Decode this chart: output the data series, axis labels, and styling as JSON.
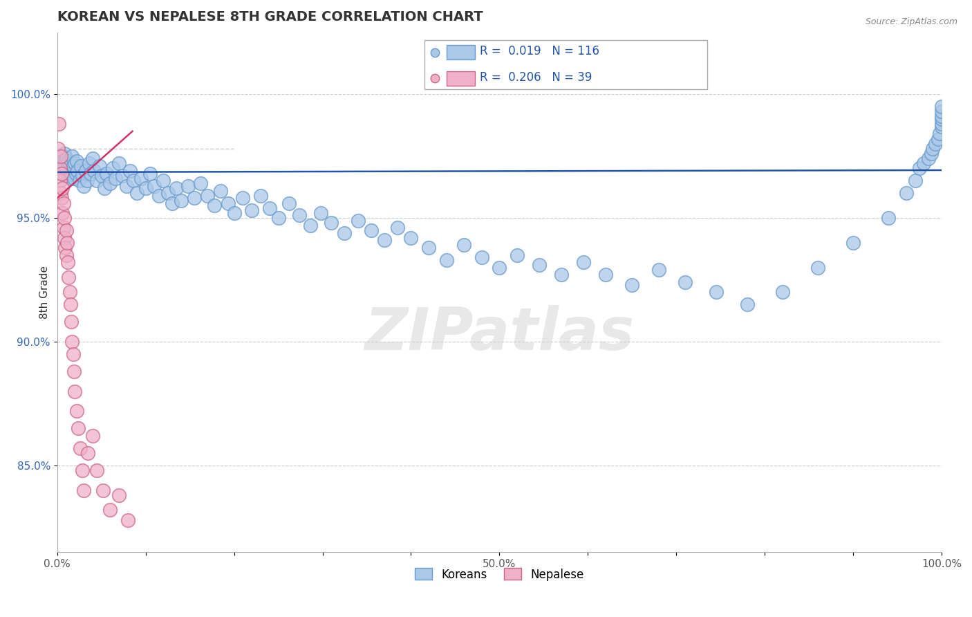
{
  "title": "KOREAN VS NEPALESE 8TH GRADE CORRELATION CHART",
  "source": "Source: ZipAtlas.com",
  "ylabel": "8th Grade",
  "xlim": [
    0.0,
    1.0
  ],
  "ylim": [
    0.815,
    1.025
  ],
  "x_ticks": [
    0.0,
    0.1,
    0.2,
    0.3,
    0.4,
    0.5,
    0.6,
    0.7,
    0.8,
    0.9,
    1.0
  ],
  "x_tick_labels": [
    "0.0%",
    "",
    "",
    "",
    "",
    "50.0%",
    "",
    "",
    "",
    "",
    "100.0%"
  ],
  "y_ticks": [
    0.85,
    0.9,
    0.95,
    1.0
  ],
  "y_tick_labels": [
    "85.0%",
    "90.0%",
    "95.0%",
    "100.0%"
  ],
  "korean_R": 0.019,
  "korean_N": 116,
  "nepalese_R": 0.206,
  "nepalese_N": 39,
  "korean_color": "#aac8e8",
  "korean_edge": "#6699cc",
  "nepalese_color": "#f0b0c8",
  "nepalese_edge": "#cc6688",
  "trend_korean_color": "#2255aa",
  "trend_nepalese_color": "#cc3366",
  "watermark": "ZIPatlas",
  "korean_x": [
    0.003,
    0.005,
    0.006,
    0.007,
    0.008,
    0.008,
    0.009,
    0.01,
    0.01,
    0.011,
    0.012,
    0.013,
    0.014,
    0.015,
    0.015,
    0.016,
    0.017,
    0.018,
    0.019,
    0.02,
    0.021,
    0.022,
    0.023,
    0.025,
    0.027,
    0.028,
    0.03,
    0.032,
    0.034,
    0.036,
    0.038,
    0.04,
    0.042,
    0.045,
    0.048,
    0.05,
    0.053,
    0.056,
    0.06,
    0.063,
    0.066,
    0.07,
    0.074,
    0.078,
    0.082,
    0.086,
    0.09,
    0.095,
    0.1,
    0.105,
    0.11,
    0.115,
    0.12,
    0.125,
    0.13,
    0.135,
    0.14,
    0.148,
    0.155,
    0.162,
    0.17,
    0.178,
    0.185,
    0.193,
    0.2,
    0.21,
    0.22,
    0.23,
    0.24,
    0.25,
    0.262,
    0.274,
    0.286,
    0.298,
    0.31,
    0.325,
    0.34,
    0.355,
    0.37,
    0.385,
    0.4,
    0.42,
    0.44,
    0.46,
    0.48,
    0.5,
    0.52,
    0.545,
    0.57,
    0.595,
    0.62,
    0.65,
    0.68,
    0.71,
    0.745,
    0.78,
    0.82,
    0.86,
    0.9,
    0.94,
    0.96,
    0.97,
    0.975,
    0.98,
    0.985,
    0.988,
    0.99,
    0.993,
    0.996,
    0.998,
    1.0,
    1.0,
    1.0,
    1.0,
    1.0,
    1.0
  ],
  "korean_y": [
    0.972,
    0.974,
    0.97,
    0.975,
    0.968,
    0.976,
    0.971,
    0.969,
    0.974,
    0.97,
    0.967,
    0.973,
    0.969,
    0.966,
    0.972,
    0.968,
    0.975,
    0.971,
    0.966,
    0.972,
    0.968,
    0.973,
    0.969,
    0.965,
    0.971,
    0.967,
    0.963,
    0.969,
    0.965,
    0.972,
    0.968,
    0.974,
    0.969,
    0.965,
    0.971,
    0.967,
    0.962,
    0.968,
    0.964,
    0.97,
    0.966,
    0.972,
    0.967,
    0.963,
    0.969,
    0.965,
    0.96,
    0.966,
    0.962,
    0.968,
    0.963,
    0.959,
    0.965,
    0.96,
    0.956,
    0.962,
    0.957,
    0.963,
    0.958,
    0.964,
    0.959,
    0.955,
    0.961,
    0.956,
    0.952,
    0.958,
    0.953,
    0.959,
    0.954,
    0.95,
    0.956,
    0.951,
    0.947,
    0.952,
    0.948,
    0.944,
    0.949,
    0.945,
    0.941,
    0.946,
    0.942,
    0.938,
    0.933,
    0.939,
    0.934,
    0.93,
    0.935,
    0.931,
    0.927,
    0.932,
    0.927,
    0.923,
    0.929,
    0.924,
    0.92,
    0.915,
    0.92,
    0.93,
    0.94,
    0.95,
    0.96,
    0.965,
    0.97,
    0.972,
    0.974,
    0.976,
    0.978,
    0.98,
    0.982,
    0.984,
    0.987,
    0.988,
    0.99,
    0.991,
    0.993,
    0.995
  ],
  "nepalese_x": [
    0.001,
    0.002,
    0.003,
    0.003,
    0.004,
    0.004,
    0.005,
    0.005,
    0.006,
    0.006,
    0.007,
    0.007,
    0.008,
    0.008,
    0.009,
    0.01,
    0.01,
    0.011,
    0.012,
    0.013,
    0.014,
    0.015,
    0.016,
    0.017,
    0.018,
    0.019,
    0.02,
    0.022,
    0.024,
    0.026,
    0.028,
    0.03,
    0.035,
    0.04,
    0.045,
    0.052,
    0.06,
    0.07,
    0.08
  ],
  "nepalese_y": [
    0.978,
    0.988,
    0.97,
    0.965,
    0.975,
    0.96,
    0.958,
    0.968,
    0.952,
    0.962,
    0.946,
    0.956,
    0.942,
    0.95,
    0.938,
    0.945,
    0.935,
    0.94,
    0.932,
    0.926,
    0.92,
    0.915,
    0.908,
    0.9,
    0.895,
    0.888,
    0.88,
    0.872,
    0.865,
    0.857,
    0.848,
    0.84,
    0.855,
    0.862,
    0.848,
    0.84,
    0.832,
    0.838,
    0.828
  ]
}
